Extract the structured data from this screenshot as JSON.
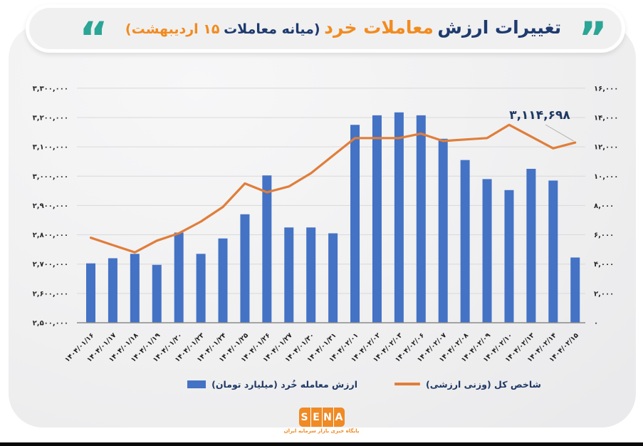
{
  "title": {
    "part1_navy": "تغییرات ارزش",
    "part2_orange": "معاملات خرد",
    "part3_navy": "(میانه معاملات",
    "part4_orange": "۱۵ اردیبهشت)",
    "open_quote": "”",
    "close_quote": "“"
  },
  "colors": {
    "bar_blue": "#4472c4",
    "line_orange": "#e07e3a",
    "navy_text": "#1f3864",
    "orange_text": "#f28b1e",
    "teal_quotes": "#2ba595",
    "gridline": "#d9d9d9",
    "axis_line": "#8a8a8a"
  },
  "legend": {
    "bar_label": "ارزش معامله خُرد (میلیارد تومان)",
    "line_label": "شاخص کل (وزنی ارزشی)"
  },
  "logo": {
    "letters": [
      "S",
      "E",
      "N",
      "A"
    ],
    "tagline": "پایگاه خبری بازار سرمایه ایران"
  },
  "chart_data": {
    "type": "bar",
    "subtype": "combo-bar-line-dual-axis",
    "grid": true,
    "legend_position": "bottom",
    "categories": [
      "۱۴۰۴/۰۱/۱۶",
      "۱۴۰۴/۰۱/۱۷",
      "۱۴۰۴/۰۱/۱۸",
      "۱۴۰۴/۰۱/۱۹",
      "۱۴۰۴/۰۱/۲۰",
      "۱۴۰۴/۰۱/۲۳",
      "۱۴۰۴/۰۱/۲۴",
      "۱۴۰۴/۰۱/۲۵",
      "۱۴۰۴/۰۱/۲۶",
      "۱۴۰۴/۰۱/۲۷",
      "۱۴۰۴/۰۱/۳۰",
      "۱۴۰۴/۰۱/۳۱",
      "۱۴۰۴/۰۲/۰۱",
      "۱۴۰۴/۰۲/۰۲",
      "۱۴۰۴/۰۲/۰۳",
      "۱۴۰۴/۰۲/۰۶",
      "۱۴۰۴/۰۲/۰۷",
      "۱۴۰۴/۰۲/۰۸",
      "۱۴۰۴/۰۲/۰۹",
      "۱۴۰۴/۰۲/۱۰",
      "۱۴۰۴/۰۲/۱۳",
      "۱۴۰۴/۰۲/۱۴",
      "۱۴۰۴/۰۲/۱۵"
    ],
    "series": [
      {
        "name": "ارزش معامله خُرد (میلیارد تومان)",
        "type": "bar",
        "axis": "right",
        "color": "#4472c4",
        "values": [
          4050,
          4400,
          4700,
          3950,
          6150,
          4700,
          5750,
          7400,
          10050,
          6500,
          6500,
          6100,
          13500,
          14150,
          14350,
          14150,
          12550,
          11100,
          9800,
          9050,
          10500,
          9700,
          4450
        ]
      },
      {
        "name": "شاخص کل (وزنی ارزشی)",
        "type": "line",
        "axis": "left",
        "color": "#e07e3a",
        "values": [
          2790000,
          2765000,
          2740000,
          2780000,
          2805000,
          2845000,
          2895000,
          2975000,
          2945000,
          2965000,
          3010000,
          3070000,
          3130000,
          3130000,
          3130000,
          3145000,
          3120000,
          3125000,
          3130000,
          3175000,
          3135000,
          3095000,
          3114698
        ]
      }
    ],
    "left_axis": {
      "min": 2500000,
      "max": 3300000,
      "step": 100000,
      "tick_labels": [
        "۳,۳۰۰,۰۰۰",
        "۳,۲۰۰,۰۰۰",
        "۳,۱۰۰,۰۰۰",
        "۳,۰۰۰,۰۰۰",
        "۲,۹۰۰,۰۰۰",
        "۲,۸۰۰,۰۰۰",
        "۲,۷۰۰,۰۰۰",
        "۲,۶۰۰,۰۰۰",
        "۲,۵۰۰,۰۰۰"
      ]
    },
    "right_axis": {
      "min": 0,
      "max": 16000,
      "step": 2000,
      "tick_labels": [
        "۱۶,۰۰۰",
        "۱۴,۰۰۰",
        "۱۲,۰۰۰",
        "۱۰,۰۰۰",
        "۸,۰۰۰",
        "۶,۰۰۰",
        "۴,۰۰۰",
        "۲,۰۰۰",
        "۰"
      ]
    },
    "annotation": {
      "text": "۳,۱۱۴,۶۹۸",
      "value": 3114698,
      "series": "شاخص کل (وزنی ارزشی)",
      "category_index": 22
    }
  }
}
